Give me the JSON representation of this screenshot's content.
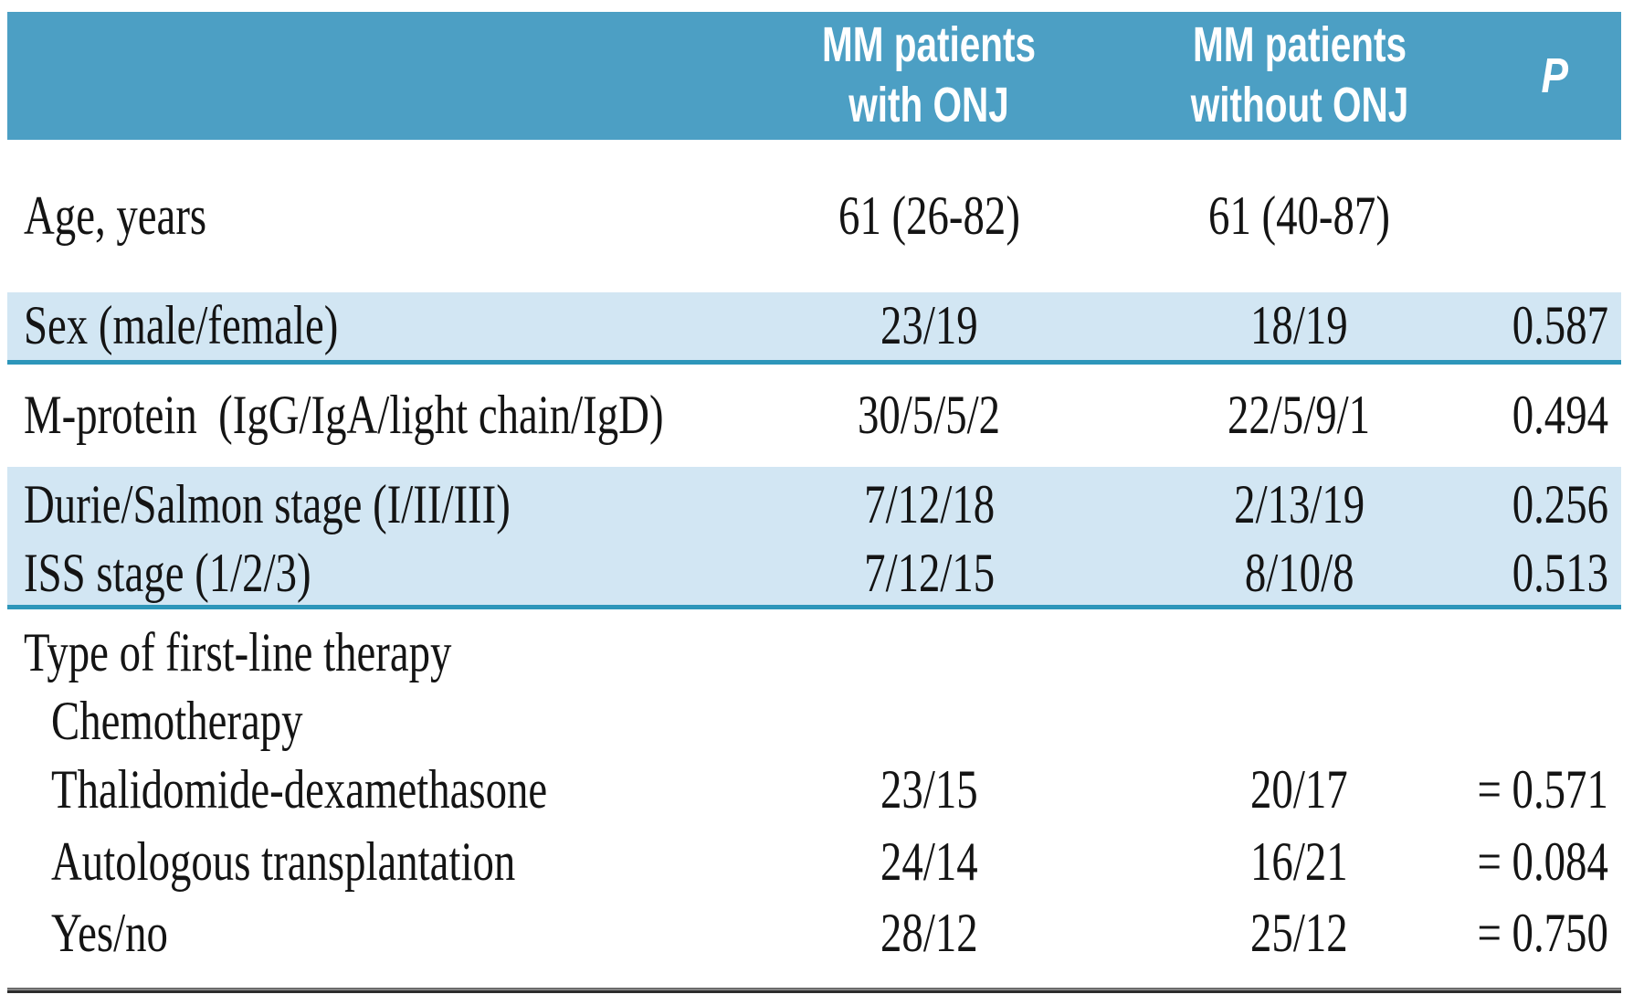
{
  "header": {
    "with_onj": [
      "MM patients",
      "with ONJ"
    ],
    "without_onj": [
      "MM patients",
      "without ONJ"
    ],
    "p": "P"
  },
  "rows": [
    {
      "label": "Age, years",
      "with_onj": "61 (26-82)",
      "without_onj": "61 (40-87)",
      "p": ""
    },
    {
      "label": "Sex (male/female)",
      "with_onj": "23/19",
      "without_onj": "18/19",
      "p": "0.587"
    },
    {
      "label": "M-protein  (IgG/IgA/light chain/IgD)",
      "with_onj": "30/5/5/2",
      "without_onj": "22/5/9/1",
      "p": "0.494"
    },
    {
      "label": "Durie/Salmon stage (I/II/III)",
      "with_onj": "7/12/18",
      "without_onj": "2/13/19",
      "p": "0.256"
    },
    {
      "label": "ISS stage (1/2/3)",
      "with_onj": "7/12/15",
      "without_onj": "8/10/8",
      "p": "0.513"
    },
    {
      "label": "Type of first-line therapy",
      "with_onj": "",
      "without_onj": "",
      "p": ""
    },
    {
      "label": "Chemotherapy",
      "with_onj": "",
      "without_onj": "",
      "p": ""
    },
    {
      "label": "Thalidomide-dexamethasone",
      "with_onj": "23/15",
      "without_onj": "20/17",
      "p": "= 0.571"
    },
    {
      "label": "Autologous transplantation",
      "with_onj": "24/14",
      "without_onj": "16/21",
      "p": "= 0.084"
    },
    {
      "label": "Yes/no",
      "with_onj": "28/12",
      "without_onj": "25/12",
      "p": "= 0.750"
    }
  ],
  "colors": {
    "header_bg": "#4c9fc4",
    "row_shade_bg": "#d2e6f3",
    "divider_teal": "#2d96ba",
    "text": "#141414",
    "bottom_rule": "#2c2c2c"
  }
}
